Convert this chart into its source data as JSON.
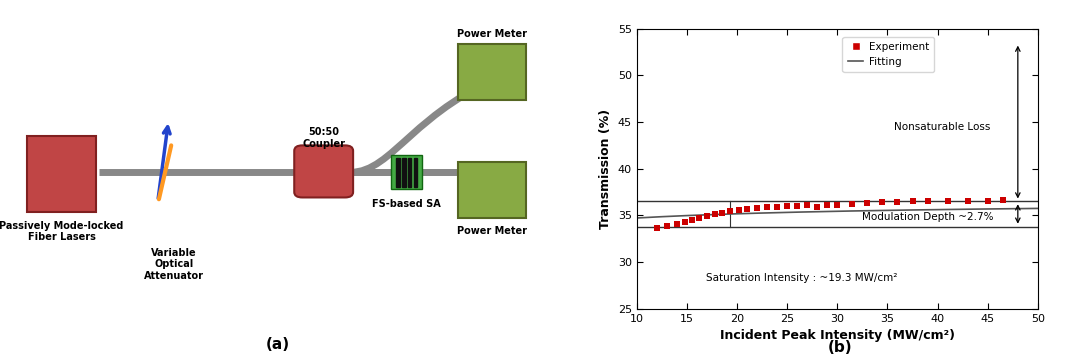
{
  "panel_a_label": "(a)",
  "panel_b_label": "(b)",
  "xlabel": "Incident Peak Intensity (MW/cm²)",
  "ylabel": "Transmission (%)",
  "xlim": [
    10,
    50
  ],
  "ylim": [
    25,
    55
  ],
  "xticks": [
    10,
    15,
    20,
    25,
    30,
    35,
    40,
    45,
    50
  ],
  "yticks": [
    25,
    30,
    35,
    40,
    45,
    50,
    55
  ],
  "exp_x": [
    12.0,
    13.0,
    14.0,
    14.8,
    15.5,
    16.2,
    17.0,
    17.8,
    18.5,
    19.3,
    20.2,
    21.0,
    22.0,
    23.0,
    24.0,
    25.0,
    26.0,
    27.0,
    28.0,
    29.0,
    30.0,
    31.5,
    33.0,
    34.5,
    36.0,
    37.5,
    39.0,
    41.0,
    43.0,
    45.0,
    46.5
  ],
  "exp_y": [
    33.7,
    33.85,
    34.1,
    34.3,
    34.55,
    34.75,
    34.95,
    35.15,
    35.3,
    35.45,
    35.6,
    35.7,
    35.8,
    35.9,
    35.95,
    36.0,
    36.05,
    36.1,
    35.85,
    36.1,
    36.15,
    36.2,
    36.3,
    36.4,
    36.45,
    36.5,
    36.5,
    36.5,
    36.55,
    36.55,
    36.6
  ],
  "line_upper_y": 36.5,
  "line_lower_y": 33.8,
  "sat_intensity_x": 19.3,
  "sat_intensity_label": "Saturation Intensity : ~19.3 MW/cm²",
  "mod_depth_label": "Modulation Depth ~2.7%",
  "nonsaturable_label": "Nonsaturable Loss",
  "exp_color": "#cc0000",
  "fit_color": "#555555",
  "marker": "s",
  "markersize": 4.5,
  "legend_exp": "Experiment",
  "legend_fit": "Fitting",
  "bg_color": "#ffffff",
  "fiber_color": "#888888",
  "laser_color": "#c04545",
  "coupler_color": "#c04545",
  "sa_green": "#44aa44",
  "pm_green": "#88aa44"
}
